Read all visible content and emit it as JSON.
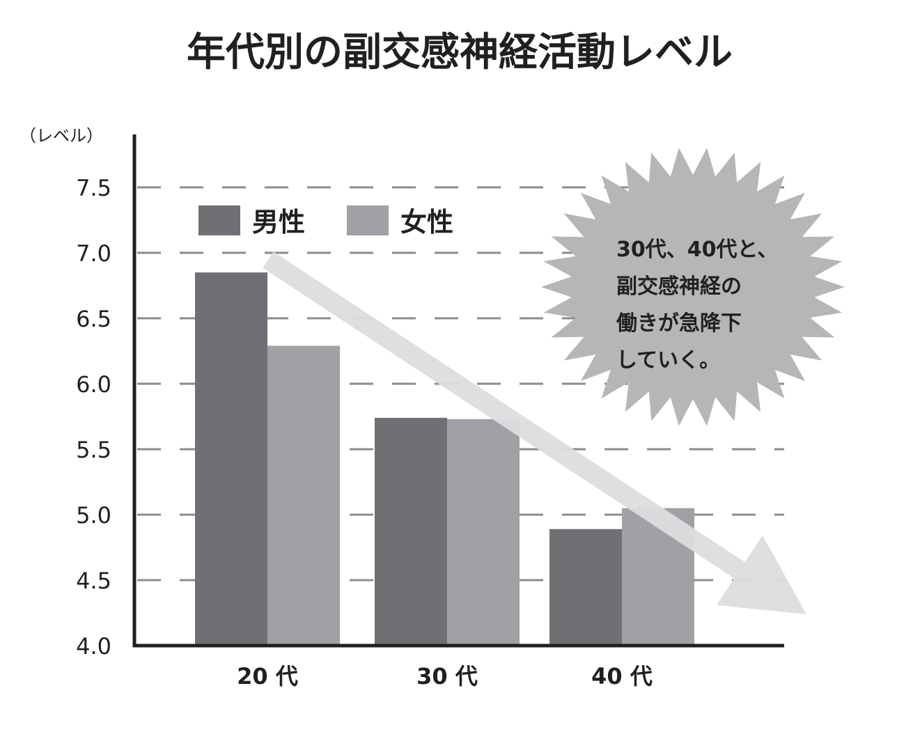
{
  "chart_data": {
    "type": "bar",
    "title": "年代別の副交感神経活動レベル",
    "ylabel": "（レベル）",
    "xlabel": "",
    "categories": [
      "20 代",
      "30 代",
      "40 代"
    ],
    "series": [
      {
        "name": "男性",
        "values": [
          6.85,
          5.74,
          4.89
        ],
        "color": "#6f7073"
      },
      {
        "name": "女性",
        "values": [
          6.29,
          5.73,
          5.05
        ],
        "color": "#a0a1a4"
      }
    ],
    "ylim": [
      4.0,
      7.5
    ],
    "yticks": [
      "4.0",
      "4.5",
      "5.0",
      "5.5",
      "6.0",
      "6.5",
      "7.0",
      "7.5"
    ],
    "grid": "dashed horizontal",
    "legend": "top-left",
    "annotation": {
      "lines": [
        "30代、40代と、",
        "副交感神経の",
        "働きが急降下",
        "していく。"
      ],
      "shape": "starburst",
      "color": "#b5b6b8"
    },
    "trend_arrow": {
      "direction": "down-right",
      "color": "#dcdddf"
    }
  }
}
